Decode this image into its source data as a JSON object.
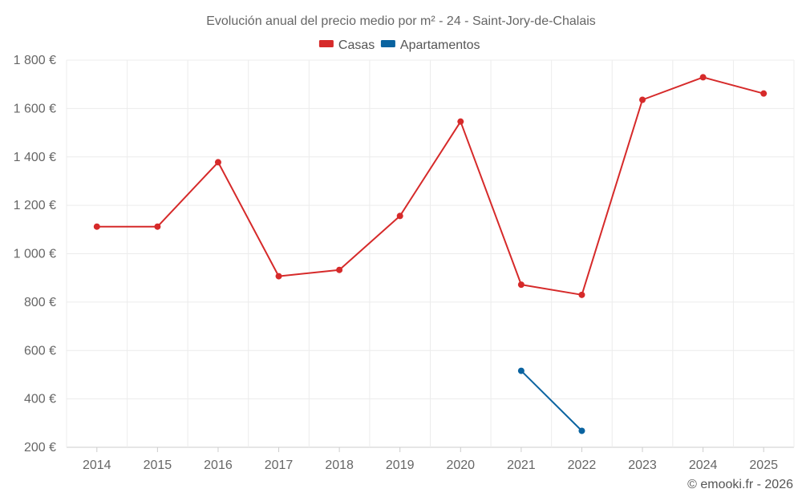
{
  "chart_data": {
    "type": "line",
    "title": "Evolución anual del precio medio por m² - 24 - Saint-Jory-de-Chalais",
    "categories": [
      "2014",
      "2015",
      "2016",
      "2017",
      "2018",
      "2019",
      "2020",
      "2021",
      "2022",
      "2023",
      "2024",
      "2025"
    ],
    "series": [
      {
        "name": "Casas",
        "color": "#d62a2a",
        "values": [
          1112,
          1112,
          1378,
          907,
          933,
          1156,
          1546,
          872,
          830,
          1636,
          1729,
          1662
        ]
      },
      {
        "name": "Apartamentos",
        "color": "#0a63a0",
        "values": [
          null,
          null,
          null,
          null,
          null,
          null,
          null,
          516,
          268,
          null,
          null,
          null
        ]
      }
    ],
    "ylim": [
      200,
      1800
    ],
    "yticks": [
      200,
      400,
      600,
      800,
      1000,
      1200,
      1400,
      1600,
      1800
    ],
    "ytick_labels": [
      "200 €",
      "400 €",
      "600 €",
      "800 €",
      "1 000 €",
      "1 200 €",
      "1 400 €",
      "1 600 €",
      "1 800 €"
    ],
    "xlabel": "",
    "ylabel": "",
    "grid": true,
    "legend_position": "top-center"
  },
  "credit": "© emooki.fr - 2026"
}
